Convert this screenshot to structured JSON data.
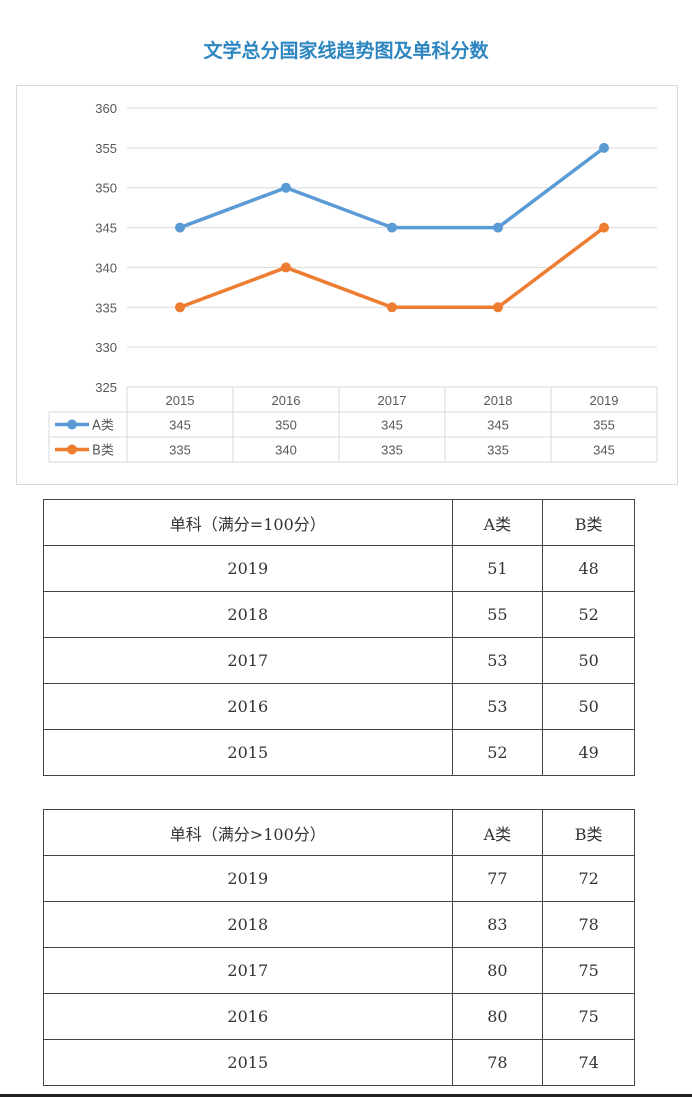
{
  "title": "文学总分国家线趋势图及单科分数",
  "chart_data": {
    "type": "line",
    "categories": [
      "2015",
      "2016",
      "2017",
      "2018",
      "2019"
    ],
    "series": [
      {
        "name": "A类",
        "values": [
          345,
          350,
          345,
          345,
          355
        ],
        "color": "#5b9bd5"
      },
      {
        "name": "B类",
        "values": [
          335,
          340,
          335,
          335,
          345
        ],
        "color": "#ed7d31"
      }
    ],
    "ylim": [
      325,
      360
    ],
    "yticks": [
      "325",
      "330",
      "335",
      "340",
      "345",
      "350",
      "355",
      "360"
    ],
    "grid": true,
    "data_table": true,
    "value_labels": {
      "A": [
        "345",
        "350",
        "345",
        "345",
        "355"
      ],
      "B": [
        "335",
        "340",
        "335",
        "335",
        "345"
      ]
    }
  },
  "table1": {
    "header": [
      "单科（满分=100分）",
      "A类",
      "B类"
    ],
    "rows": [
      [
        "2019",
        "51",
        "48"
      ],
      [
        "2018",
        "55",
        "52"
      ],
      [
        "2017",
        "53",
        "50"
      ],
      [
        "2016",
        "53",
        "50"
      ],
      [
        "2015",
        "52",
        "49"
      ]
    ]
  },
  "table2": {
    "header": [
      "单科（满分>100分）",
      "A类",
      "B类"
    ],
    "rows": [
      [
        "2019",
        "77",
        "72"
      ],
      [
        "2018",
        "83",
        "78"
      ],
      [
        "2017",
        "80",
        "75"
      ],
      [
        "2016",
        "80",
        "75"
      ],
      [
        "2015",
        "78",
        "74"
      ]
    ]
  }
}
